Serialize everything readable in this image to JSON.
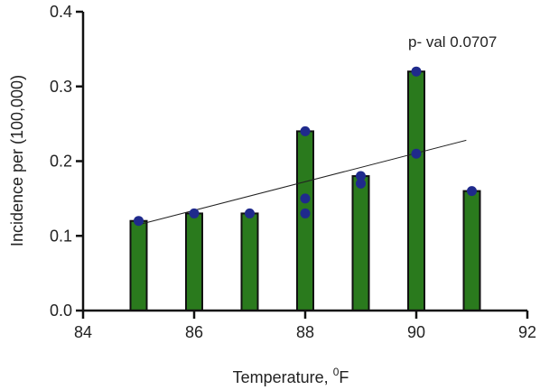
{
  "chart_data": {
    "type": "bar",
    "xlabel": "Temperature, ",
    "xlabel_superscript": "0",
    "xlabel_unit": "F",
    "ylabel": "Incidence per (100,000)",
    "xlim": [
      84,
      92
    ],
    "ylim": [
      0,
      0.4
    ],
    "x_ticks": [
      84,
      86,
      88,
      90,
      92
    ],
    "y_ticks": [
      "0.0",
      "0.1",
      "0.2",
      "0.3",
      "0.4"
    ],
    "bars": [
      {
        "x": 85,
        "value": 0.12
      },
      {
        "x": 86,
        "value": 0.13
      },
      {
        "x": 87,
        "value": 0.13
      },
      {
        "x": 88,
        "value": 0.24
      },
      {
        "x": 89,
        "value": 0.18
      },
      {
        "x": 90,
        "value": 0.32
      },
      {
        "x": 91,
        "value": 0.16
      }
    ],
    "points": [
      {
        "x": 85,
        "y": 0.12
      },
      {
        "x": 86,
        "y": 0.13
      },
      {
        "x": 87,
        "y": 0.13
      },
      {
        "x": 88,
        "y": 0.24
      },
      {
        "x": 88,
        "y": 0.15
      },
      {
        "x": 88,
        "y": 0.13
      },
      {
        "x": 89,
        "y": 0.18
      },
      {
        "x": 89,
        "y": 0.17
      },
      {
        "x": 90,
        "y": 0.32
      },
      {
        "x": 90,
        "y": 0.21
      },
      {
        "x": 91,
        "y": 0.16
      }
    ],
    "trendline": {
      "x": [
        85,
        90.9
      ],
      "y": [
        0.115,
        0.228
      ]
    },
    "annotation": "p- val 0.0707",
    "grid": false,
    "colors": {
      "bar": "#2a7a1d",
      "bar_edge": "#111111",
      "point": "#1f2a8c",
      "axis": "#111111"
    }
  }
}
